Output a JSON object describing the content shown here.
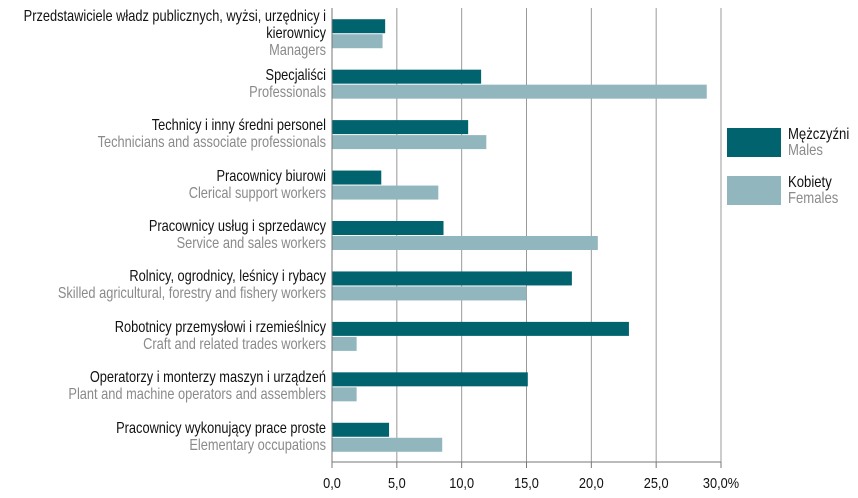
{
  "chart_data": {
    "type": "bar",
    "orientation": "horizontal",
    "categories": [
      "Przedstawiciele władz publicznych, wyżsi, urzędnicy i kierownicy",
      "Specjaliści",
      "Technicy i inny średni personel",
      "Pracownicy biurowi",
      "Pracownicy usług i sprzedawcy",
      "Rolnicy, ogrodnicy, leśnicy i rybacy",
      "Robotnicy przemysłowi i rzemieślnicy",
      "Operatorzy i monterzy maszyn i urządzeń",
      "Pracownicy wykonujący prace proste"
    ],
    "categories_en": [
      "Managers",
      "Professionals",
      "Technicians and associate professionals",
      "Clerical support workers",
      "Service and sales workers",
      "Skilled agricultural, forestry and fishery workers",
      "Craft and related trades workers",
      "Plant and machine operators and assemblers",
      "Elementary occupations"
    ],
    "series": [
      {
        "name": "Mężczyźni",
        "name_en": "Males",
        "color": "#00636e",
        "values": [
          4.1,
          11.5,
          10.5,
          3.8,
          8.6,
          18.5,
          22.9,
          15.1,
          4.4
        ]
      },
      {
        "name": "Kobiety",
        "name_en": "Females",
        "color": "#92b6bd",
        "values": [
          3.9,
          28.9,
          11.9,
          8.2,
          20.5,
          15.0,
          1.9,
          1.9,
          8.5
        ]
      }
    ],
    "xlim": [
      0,
      30
    ],
    "xticks": [
      {
        "value": 0,
        "label": "0,0"
      },
      {
        "value": 5,
        "label": "5,0"
      },
      {
        "value": 10,
        "label": "10,0"
      },
      {
        "value": 15,
        "label": "15,0"
      },
      {
        "value": 20,
        "label": "20,0"
      },
      {
        "value": 25,
        "label": "25,0"
      },
      {
        "value": 30,
        "label": "30,0%"
      }
    ],
    "grid": true,
    "legend": "right"
  }
}
